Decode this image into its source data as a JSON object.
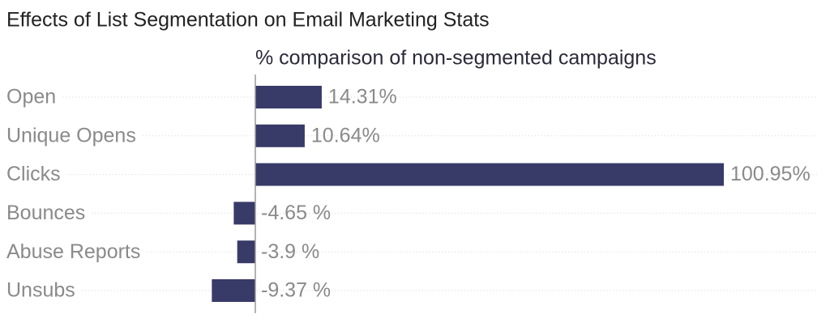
{
  "chart_data": {
    "type": "bar",
    "orientation": "horizontal",
    "title": "Effects of List Segmentation on Email Marketing Stats",
    "subtitle": "% comparison of non-segmented campaigns",
    "categories": [
      "Open",
      "Unique Opens",
      "Clicks",
      "Bounces",
      "Abuse Reports",
      "Unsubs"
    ],
    "values": [
      14.31,
      10.64,
      100.95,
      -4.65,
      -3.9,
      -9.37
    ],
    "value_labels": [
      "14.31%",
      "10.64%",
      "100.95%",
      "-4.65 %",
      "-3.9 %",
      "-9.37 %"
    ],
    "color": "#383a68",
    "grid": true
  }
}
